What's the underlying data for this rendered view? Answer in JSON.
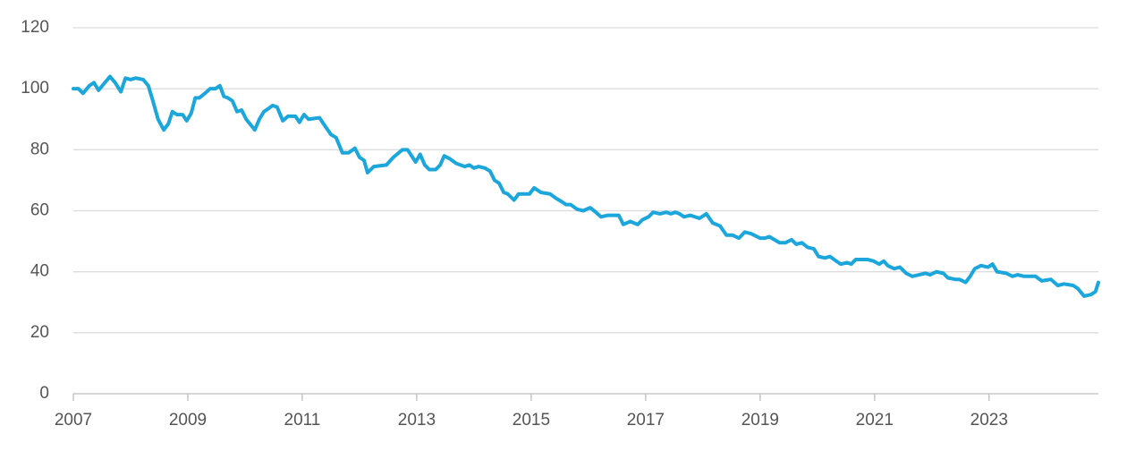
{
  "chart_data": {
    "type": "line",
    "x": [
      2007.0,
      2007.09,
      2007.17,
      2007.28,
      2007.36,
      2007.44,
      2007.55,
      2007.64,
      2007.73,
      2007.83,
      2007.91,
      2008.0,
      2008.09,
      2008.22,
      2008.31,
      2008.39,
      2008.48,
      2008.58,
      2008.66,
      2008.73,
      2008.81,
      2008.91,
      2008.98,
      2009.06,
      2009.13,
      2009.2,
      2009.3,
      2009.39,
      2009.48,
      2009.56,
      2009.63,
      2009.7,
      2009.78,
      2009.86,
      2009.94,
      2010.02,
      2010.17,
      2010.25,
      2010.33,
      2010.41,
      2010.48,
      2010.56,
      2010.66,
      2010.75,
      2010.88,
      2010.95,
      2011.03,
      2011.11,
      2011.3,
      2011.39,
      2011.5,
      2011.59,
      2011.7,
      2011.81,
      2011.92,
      2012.0,
      2012.08,
      2012.14,
      2012.25,
      2012.47,
      2012.59,
      2012.75,
      2012.84,
      2012.98,
      2013.06,
      2013.14,
      2013.22,
      2013.33,
      2013.41,
      2013.48,
      2013.58,
      2013.69,
      2013.84,
      2013.92,
      2014.0,
      2014.08,
      2014.19,
      2014.28,
      2014.36,
      2014.44,
      2014.52,
      2014.59,
      2014.7,
      2014.78,
      2014.97,
      2015.05,
      2015.17,
      2015.33,
      2015.44,
      2015.53,
      2015.61,
      2015.69,
      2015.8,
      2015.91,
      2016.03,
      2016.13,
      2016.22,
      2016.34,
      2016.53,
      2016.61,
      2016.73,
      2016.86,
      2016.94,
      2017.05,
      2017.13,
      2017.25,
      2017.36,
      2017.44,
      2017.52,
      2017.59,
      2017.67,
      2017.78,
      2017.94,
      2018.06,
      2018.17,
      2018.3,
      2018.41,
      2018.52,
      2018.63,
      2018.73,
      2018.84,
      2019.0,
      2019.08,
      2019.16,
      2019.25,
      2019.34,
      2019.44,
      2019.55,
      2019.63,
      2019.73,
      2019.83,
      2019.94,
      2020.02,
      2020.13,
      2020.22,
      2020.33,
      2020.41,
      2020.52,
      2020.59,
      2020.67,
      2020.88,
      2020.98,
      2021.08,
      2021.16,
      2021.23,
      2021.34,
      2021.44,
      2021.55,
      2021.66,
      2021.78,
      2021.89,
      2021.97,
      2022.08,
      2022.2,
      2022.28,
      2022.41,
      2022.48,
      2022.59,
      2022.67,
      2022.75,
      2022.86,
      2022.98,
      2023.06,
      2023.14,
      2023.3,
      2023.41,
      2023.5,
      2023.61,
      2023.72,
      2023.81,
      2023.92,
      2024.08,
      2024.2,
      2024.31,
      2024.47,
      2024.55,
      2024.66,
      2024.78,
      2024.86,
      2024.91
    ],
    "values": [
      100,
      100,
      98.5,
      101,
      102,
      99.5,
      102,
      104,
      102,
      99,
      103.5,
      103,
      103.5,
      103,
      101,
      96,
      90,
      86.5,
      88.5,
      92.5,
      91.5,
      91.5,
      89.5,
      92,
      97,
      97,
      98.5,
      100,
      100,
      101,
      97.5,
      97,
      96,
      92.5,
      93,
      90,
      86.5,
      90,
      92.5,
      93.5,
      94.5,
      94,
      89.5,
      91,
      91,
      89,
      91.5,
      90,
      90.5,
      88,
      85,
      84,
      79,
      79,
      80.5,
      77.5,
      76.5,
      72.5,
      74.5,
      75,
      77.5,
      80,
      80,
      76,
      78.5,
      75,
      73.5,
      73.5,
      75,
      78,
      77,
      75.5,
      74.5,
      75,
      74,
      74.5,
      74,
      73,
      70,
      69,
      66,
      65.5,
      63.5,
      65.5,
      65.5,
      67.5,
      66,
      65.5,
      64,
      63,
      62,
      62,
      60.5,
      60,
      61,
      59.5,
      58,
      58.5,
      58.5,
      55.5,
      56.5,
      55.5,
      57,
      58,
      59.5,
      59,
      59.5,
      59,
      59.5,
      59,
      58,
      58.5,
      57.5,
      59,
      56,
      55,
      52,
      52,
      51,
      53,
      52.5,
      51,
      51,
      51.5,
      50.5,
      49.5,
      49.5,
      50.5,
      49,
      49.5,
      48,
      47.5,
      45,
      44.5,
      45,
      43.5,
      42.5,
      43,
      42.5,
      44,
      44,
      43.5,
      42.5,
      43.5,
      42,
      41,
      41.5,
      39.5,
      38.5,
      39,
      39.5,
      39,
      40,
      39.5,
      38,
      37.5,
      37.5,
      36.5,
      38.5,
      41,
      42,
      41.5,
      42.5,
      40,
      39.5,
      38.5,
      39,
      38.5,
      38.5,
      38.5,
      37,
      37.5,
      35.5,
      36,
      35.5,
      34.5,
      32,
      32.5,
      33.5,
      36.5
    ],
    "color": "#1ba6dc",
    "xlim": [
      2007,
      2024.91
    ],
    "xticks": [
      2007,
      2009,
      2011,
      2013,
      2015,
      2017,
      2019,
      2021,
      2023
    ],
    "ylim": [
      0,
      120
    ],
    "yticks": [
      0,
      20,
      40,
      60,
      80,
      100,
      120
    ],
    "grid": true
  }
}
